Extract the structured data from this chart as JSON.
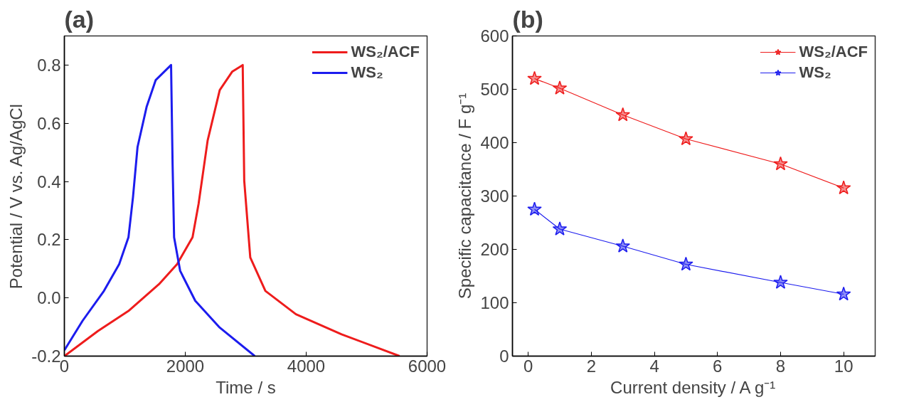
{
  "chart_data": [
    {
      "type": "line",
      "title": "(a)",
      "xlabel": "Time / s",
      "ylabel": "Potential / V vs. Ag/AgCl",
      "xlim": [
        0,
        6000
      ],
      "ylim": [
        -0.2,
        0.9
      ],
      "xticks": [
        0,
        2000,
        4000,
        6000
      ],
      "yticks": [
        -0.2,
        {
          "value": 0,
          "label": "0.0"
        },
        0.2,
        0.4,
        0.6,
        0.8
      ],
      "grid": false,
      "legend": "top right",
      "marker": "none",
      "line_style": "solid",
      "series": [
        {
          "name": "WS₂/ACF",
          "color": "#ee1c1c",
          "x": [
            0,
            555,
            1060,
            1565,
            1865,
            2120,
            2220,
            2370,
            2570,
            2775,
            2950,
            2975,
            3075,
            3325,
            3830,
            4585,
            5545
          ],
          "values": [
            -0.2,
            -0.114,
            -0.045,
            0.047,
            0.116,
            0.208,
            0.323,
            0.541,
            0.714,
            0.777,
            0.8,
            0.403,
            0.139,
            0.024,
            -0.056,
            -0.125,
            -0.2
          ]
        },
        {
          "name": "WS₂",
          "color": "#1c1cee",
          "x": [
            0,
            300,
            655,
            907,
            1060,
            1135,
            1210,
            1360,
            1510,
            1765,
            1790,
            1815,
            1915,
            2165,
            2570,
            3150
          ],
          "values": [
            -0.18,
            -0.079,
            0.024,
            0.116,
            0.208,
            0.346,
            0.518,
            0.656,
            0.748,
            0.8,
            0.46,
            0.208,
            0.093,
            -0.01,
            -0.102,
            -0.2
          ]
        }
      ]
    },
    {
      "type": "line",
      "title": "(b)",
      "xlabel": "Current density / A g⁻¹",
      "ylabel": "Specific capacitance / F g⁻¹",
      "xlim": [
        -0.5,
        11
      ],
      "ylim": [
        0,
        600
      ],
      "xticks": [
        0,
        2,
        4,
        6,
        8,
        10
      ],
      "yticks": [
        0,
        100,
        200,
        300,
        400,
        500,
        600
      ],
      "grid": false,
      "legend": "top right",
      "marker": "star",
      "line_style": "solid",
      "series": [
        {
          "name": "WS₂/ACF",
          "color": "#ee1c1c",
          "x": [
            0.2,
            1,
            3,
            5,
            8,
            10
          ],
          "values": [
            520,
            502,
            452,
            407,
            360,
            315
          ]
        },
        {
          "name": "WS₂",
          "color": "#1c1cee",
          "x": [
            0.2,
            1,
            3,
            5,
            8,
            10
          ],
          "values": [
            275,
            238,
            206,
            172,
            138,
            116
          ]
        }
      ]
    }
  ]
}
